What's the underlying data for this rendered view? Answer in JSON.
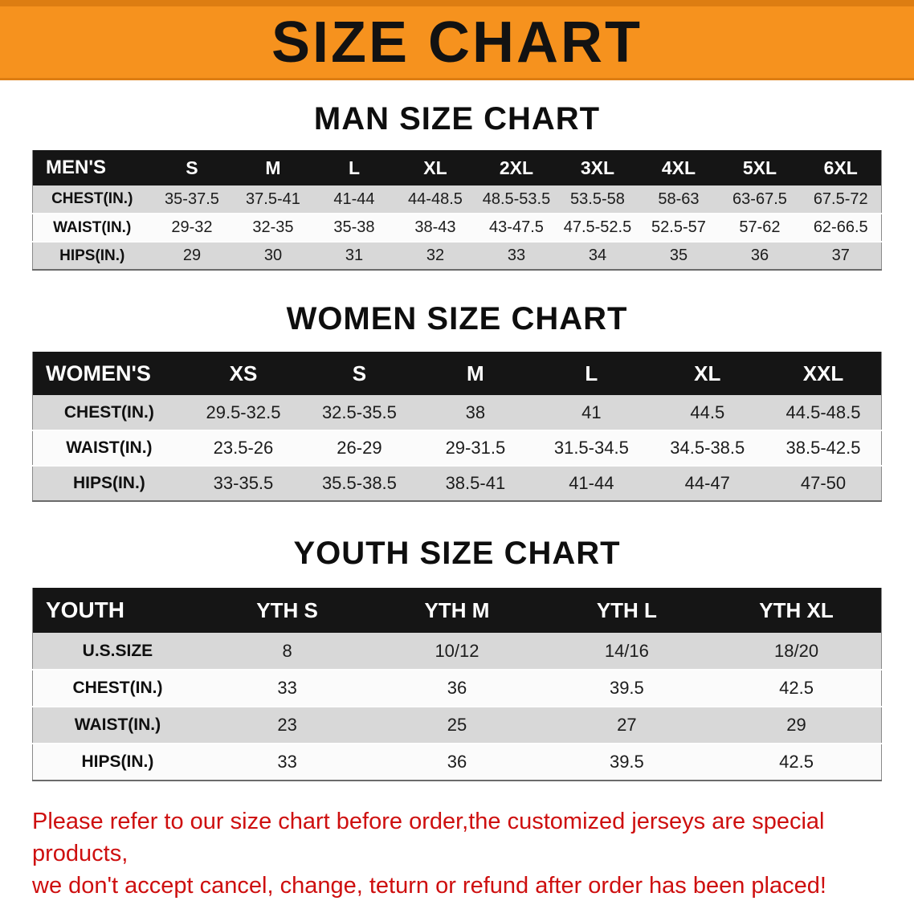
{
  "banner": {
    "title": "SIZE CHART"
  },
  "colors": {
    "banner_bg": "#F6921E",
    "table_header_bg": "#151515",
    "row_alt_gray": "#D8D8D8",
    "disclaimer_red": "#CE0F0F"
  },
  "sections": [
    {
      "heading": "MAN SIZE CHART",
      "table": {
        "header": [
          "MEN'S",
          "S",
          "M",
          "L",
          "XL",
          "2XL",
          "3XL",
          "4XL",
          "5XL",
          "6XL"
        ],
        "rows": [
          [
            "CHEST(IN.)",
            "35-37.5",
            "37.5-41",
            "41-44",
            "44-48.5",
            "48.5-53.5",
            "53.5-58",
            "58-63",
            "63-67.5",
            "67.5-72"
          ],
          [
            "WAIST(IN.)",
            "29-32",
            "32-35",
            "35-38",
            "38-43",
            "43-47.5",
            "47.5-52.5",
            "52.5-57",
            "57-62",
            "62-66.5"
          ],
          [
            "HIPS(IN.)",
            "29",
            "30",
            "31",
            "32",
            "33",
            "34",
            "35",
            "36",
            "37"
          ]
        ]
      }
    },
    {
      "heading": "WOMEN SIZE CHART",
      "table": {
        "header": [
          "WOMEN'S",
          "XS",
          "S",
          "M",
          "L",
          "XL",
          "XXL"
        ],
        "rows": [
          [
            "CHEST(IN.)",
            "29.5-32.5",
            "32.5-35.5",
            "38",
            "41",
            "44.5",
            "44.5-48.5"
          ],
          [
            "WAIST(IN.)",
            "23.5-26",
            "26-29",
            "29-31.5",
            "31.5-34.5",
            "34.5-38.5",
            "38.5-42.5"
          ],
          [
            "HIPS(IN.)",
            "33-35.5",
            "35.5-38.5",
            "38.5-41",
            "41-44",
            "44-47",
            "47-50"
          ]
        ]
      }
    },
    {
      "heading": "YOUTH SIZE CHART",
      "table": {
        "header": [
          "YOUTH",
          "YTH S",
          "YTH M",
          "YTH L",
          "YTH XL"
        ],
        "rows": [
          [
            "U.S.SIZE",
            "8",
            "10/12",
            "14/16",
            "18/20"
          ],
          [
            "CHEST(IN.)",
            "33",
            "36",
            "39.5",
            "42.5"
          ],
          [
            "WAIST(IN.)",
            "23",
            "25",
            "27",
            "29"
          ],
          [
            "HIPS(IN.)",
            "33",
            "36",
            "39.5",
            "42.5"
          ]
        ]
      }
    }
  ],
  "disclaimer": {
    "line1": "Please refer to our size chart before order,the customized jerseys are special products,",
    "line2": "we don't accept cancel, change, teturn or refund after order has been placed!"
  }
}
